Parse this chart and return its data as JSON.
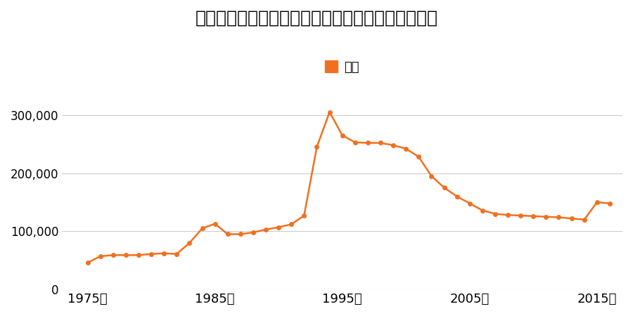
{
  "title": "大阪府東大阪市玉串元町１丁目５３番２の地価推移",
  "legend_label": "価格",
  "line_color": "#f07020",
  "marker_color": "#f07020",
  "background_color": "#ffffff",
  "grid_color": "#cccccc",
  "xlabel_suffix": "年",
  "xticks": [
    1975,
    1985,
    1995,
    2005,
    2015
  ],
  "ylim": [
    0,
    350000
  ],
  "yticks": [
    0,
    100000,
    200000,
    300000
  ],
  "xlim": [
    1973,
    2017
  ],
  "years": [
    1975,
    1976,
    1977,
    1978,
    1979,
    1980,
    1981,
    1982,
    1983,
    1984,
    1985,
    1986,
    1987,
    1988,
    1989,
    1990,
    1991,
    1992,
    1993,
    1994,
    1995,
    1996,
    1997,
    1998,
    1999,
    2000,
    2001,
    2002,
    2003,
    2004,
    2005,
    2006,
    2007,
    2008,
    2009,
    2010,
    2011,
    2012,
    2013,
    2014,
    2015,
    2016
  ],
  "values": [
    46000,
    57000,
    59000,
    59000,
    59000,
    61000,
    62000,
    61000,
    80000,
    105000,
    113000,
    95000,
    95000,
    98000,
    103000,
    107000,
    112000,
    127000,
    245000,
    305000,
    265000,
    253000,
    252000,
    252000,
    248000,
    242000,
    228000,
    195000,
    175000,
    160000,
    148000,
    136000,
    130000,
    128000,
    127000,
    126000,
    125000,
    124000,
    122000,
    120000,
    150000,
    148000
  ]
}
